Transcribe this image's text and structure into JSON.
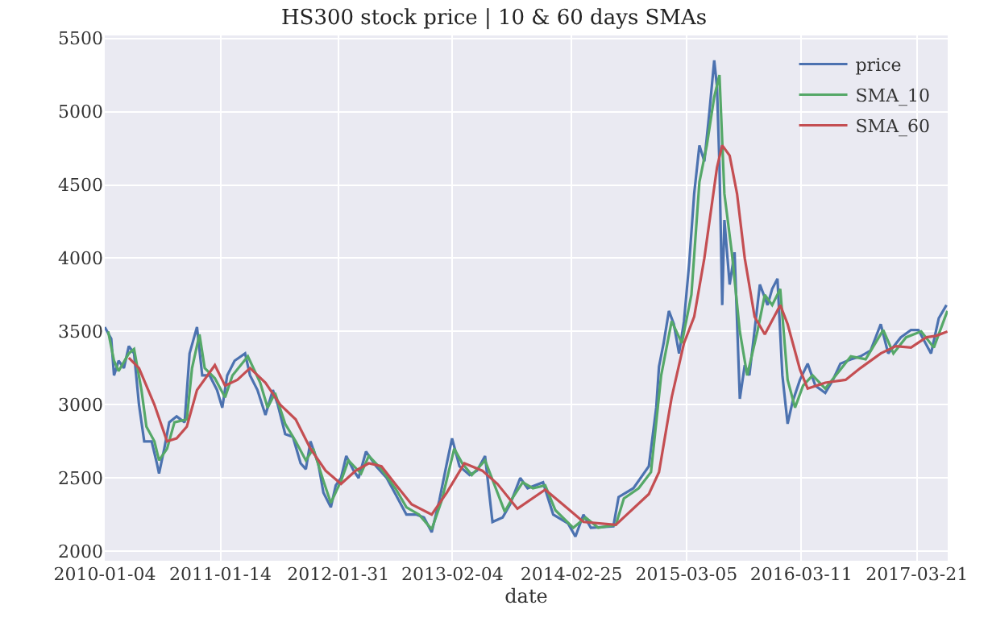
{
  "chart_data": {
    "type": "line",
    "title": "HS300 stock price | 10 & 60 days SMAs",
    "xlabel": "date",
    "xlim": [
      "2010-01-04",
      "2017-06-29"
    ],
    "xticks": [
      "2010-01-04",
      "2011-01-14",
      "2012-01-31",
      "2013-02-04",
      "2014-02-25",
      "2015-03-05",
      "2016-03-11",
      "2017-03-21"
    ],
    "ylim": [
      1935,
      5520
    ],
    "yticks": [
      2000,
      2500,
      3000,
      3500,
      4000,
      4500,
      5000,
      5500
    ],
    "grid": true,
    "legend": "top right",
    "line_style": "solid",
    "series": [
      {
        "name": "price",
        "color": "#4c72b0",
        "x": [
          "2010-01-04",
          "2010-01-25",
          "2010-02-03",
          "2010-02-18",
          "2010-03-07",
          "2010-03-23",
          "2010-04-09",
          "2010-04-25",
          "2010-05-12",
          "2010-06-05",
          "2010-06-22",
          "2010-06-29",
          "2010-07-16",
          "2010-08-01",
          "2010-08-25",
          "2010-09-20",
          "2010-10-06",
          "2010-10-30",
          "2010-11-16",
          "2010-12-10",
          "2011-01-03",
          "2011-01-20",
          "2011-02-05",
          "2011-03-01",
          "2011-04-04",
          "2011-04-20",
          "2011-05-14",
          "2011-06-09",
          "2011-07-03",
          "2011-07-19",
          "2011-08-12",
          "2011-09-06",
          "2011-10-01",
          "2011-10-18",
          "2011-11-02",
          "2011-11-27",
          "2011-12-14",
          "2012-01-07",
          "2012-01-23",
          "2012-02-09",
          "2012-02-26",
          "2012-03-21",
          "2012-04-06",
          "2012-04-30",
          "2012-06-02",
          "2012-07-06",
          "2012-08-06",
          "2012-09-08",
          "2012-10-11",
          "2012-11-04",
          "2012-11-29",
          "2012-12-24",
          "2013-01-17",
          "2013-02-03",
          "2013-02-27",
          "2013-04-01",
          "2013-04-25",
          "2013-05-21",
          "2013-06-14",
          "2013-07-17",
          "2013-08-10",
          "2013-09-12",
          "2013-10-06",
          "2013-11-25",
          "2013-12-28",
          "2014-02-14",
          "2014-03-10",
          "2014-04-05",
          "2014-04-29",
          "2014-07-11",
          "2014-07-28",
          "2014-09-14",
          "2014-11-03",
          "2014-11-27",
          "2014-12-06",
          "2014-12-21",
          "2015-01-07",
          "2015-01-23",
          "2015-02-09",
          "2015-02-25",
          "2015-03-14",
          "2015-03-30",
          "2015-04-16",
          "2015-05-02",
          "2015-05-18",
          "2015-06-03",
          "2015-06-12",
          "2015-06-20",
          "2015-06-29",
          "2015-07-06",
          "2015-07-23",
          "2015-08-08",
          "2015-08-25",
          "2015-09-10",
          "2015-09-25",
          "2015-10-29",
          "2015-11-23",
          "2015-12-08",
          "2015-12-25",
          "2016-01-10",
          "2016-01-27",
          "2016-02-12",
          "2016-03-07",
          "2016-04-01",
          "2016-04-26",
          "2016-05-28",
          "2016-06-22",
          "2016-07-16",
          "2016-08-19",
          "2016-09-19",
          "2016-10-22",
          "2016-11-24",
          "2016-12-18",
          "2017-01-28",
          "2017-03-02",
          "2017-03-26",
          "2017-05-06",
          "2017-05-31",
          "2017-06-25"
        ],
        "values": [
          3530,
          3450,
          3200,
          3300,
          3250,
          3400,
          3350,
          3000,
          2750,
          2750,
          2600,
          2530,
          2700,
          2880,
          2920,
          2880,
          3350,
          3530,
          3200,
          3200,
          3100,
          2980,
          3200,
          3300,
          3350,
          3200,
          3100,
          2930,
          3100,
          3000,
          2800,
          2780,
          2600,
          2560,
          2750,
          2600,
          2400,
          2300,
          2450,
          2500,
          2650,
          2550,
          2500,
          2680,
          2580,
          2500,
          2380,
          2250,
          2250,
          2230,
          2130,
          2350,
          2600,
          2770,
          2580,
          2520,
          2550,
          2650,
          2200,
          2230,
          2320,
          2500,
          2430,
          2470,
          2250,
          2190,
          2100,
          2250,
          2160,
          2170,
          2370,
          2430,
          2580,
          2980,
          3260,
          3420,
          3640,
          3550,
          3350,
          3570,
          3970,
          4440,
          4770,
          4660,
          4990,
          5350,
          5170,
          4630,
          3680,
          4260,
          3820,
          4040,
          3040,
          3270,
          3200,
          3820,
          3680,
          3790,
          3860,
          3200,
          2870,
          3020,
          3170,
          3280,
          3130,
          3080,
          3170,
          3280,
          3310,
          3330,
          3370,
          3550,
          3350,
          3460,
          3510,
          3510,
          3350,
          3590,
          3680
        ]
      },
      {
        "name": "SMA_10",
        "color": "#55a868",
        "x": [
          "2010-01-15",
          "2010-02-03",
          "2010-02-18",
          "2010-03-23",
          "2010-04-09",
          "2010-05-03",
          "2010-05-19",
          "2010-06-14",
          "2010-06-29",
          "2010-07-25",
          "2010-08-18",
          "2010-09-27",
          "2010-10-14",
          "2010-11-07",
          "2010-11-24",
          "2010-12-27",
          "2011-01-29",
          "2011-02-22",
          "2011-04-13",
          "2011-05-23",
          "2011-06-16",
          "2011-07-10",
          "2011-08-12",
          "2011-09-15",
          "2011-10-18",
          "2011-11-11",
          "2011-12-14",
          "2012-01-07",
          "2012-02-09",
          "2012-03-04",
          "2012-04-14",
          "2012-05-09",
          "2012-06-19",
          "2012-08-06",
          "2012-09-08",
          "2012-10-19",
          "2012-11-29",
          "2013-01-01",
          "2013-02-10",
          "2013-03-08",
          "2013-04-08",
          "2013-05-21",
          "2013-07-24",
          "2013-08-17",
          "2013-09-20",
          "2013-10-23",
          "2013-12-02",
          "2014-01-04",
          "2014-03-03",
          "2014-04-12",
          "2014-05-23",
          "2014-07-19",
          "2014-08-14",
          "2014-10-01",
          "2014-11-10",
          "2014-12-13",
          "2015-01-16",
          "2015-02-18",
          "2015-03-21",
          "2015-04-16",
          "2015-05-10",
          "2015-06-03",
          "2015-06-20",
          "2015-07-06",
          "2015-07-30",
          "2015-08-25",
          "2015-09-18",
          "2015-10-21",
          "2015-11-14",
          "2015-12-08",
          "2016-01-03",
          "2016-01-27",
          "2016-02-20",
          "2016-03-17",
          "2016-04-17",
          "2016-05-28",
          "2016-07-16",
          "2016-08-19",
          "2016-10-06",
          "2016-12-02",
          "2017-01-04",
          "2017-02-14",
          "2017-04-04",
          "2017-05-15",
          "2017-06-28"
        ],
        "values": [
          3500,
          3300,
          3230,
          3350,
          3380,
          3100,
          2850,
          2750,
          2620,
          2700,
          2880,
          2900,
          3250,
          3480,
          3250,
          3180,
          3050,
          3200,
          3330,
          3150,
          2980,
          3080,
          2870,
          2750,
          2620,
          2700,
          2480,
          2330,
          2480,
          2620,
          2530,
          2650,
          2560,
          2420,
          2300,
          2250,
          2150,
          2350,
          2700,
          2600,
          2520,
          2620,
          2270,
          2360,
          2470,
          2430,
          2450,
          2280,
          2160,
          2230,
          2160,
          2180,
          2360,
          2430,
          2540,
          3200,
          3570,
          3420,
          3750,
          4520,
          4770,
          5100,
          5250,
          4440,
          4040,
          3500,
          3200,
          3500,
          3750,
          3680,
          3790,
          3170,
          2980,
          3130,
          3200,
          3110,
          3240,
          3330,
          3310,
          3510,
          3350,
          3460,
          3500,
          3390,
          3640
        ]
      },
      {
        "name": "SMA_60",
        "color": "#c44e52",
        "x": [
          "2010-03-23",
          "2010-04-25",
          "2010-06-14",
          "2010-07-25",
          "2010-08-25",
          "2010-09-27",
          "2010-10-30",
          "2010-12-27",
          "2011-01-29",
          "2011-03-10",
          "2011-04-20",
          "2011-06-09",
          "2011-07-27",
          "2011-09-15",
          "2011-11-02",
          "2011-12-21",
          "2012-02-09",
          "2012-03-28",
          "2012-05-09",
          "2012-06-19",
          "2012-08-06",
          "2012-09-25",
          "2012-11-29",
          "2013-01-17",
          "2013-03-15",
          "2013-05-12",
          "2013-06-30",
          "2013-09-03",
          "2013-12-02",
          "2014-01-28",
          "2014-04-05",
          "2014-07-19",
          "2014-11-03",
          "2014-12-06",
          "2015-01-16",
          "2015-02-25",
          "2015-03-30",
          "2015-05-02",
          "2015-06-12",
          "2015-06-29",
          "2015-07-23",
          "2015-08-16",
          "2015-09-10",
          "2015-10-12",
          "2015-11-14",
          "2016-01-03",
          "2016-01-27",
          "2016-03-07",
          "2016-04-01",
          "2016-05-28",
          "2016-08-02",
          "2016-09-19",
          "2016-11-24",
          "2017-01-12",
          "2017-03-02",
          "2017-04-21",
          "2017-05-22",
          "2017-06-28"
        ],
        "values": [
          3320,
          3250,
          3000,
          2750,
          2770,
          2850,
          3100,
          3270,
          3130,
          3170,
          3250,
          3150,
          3000,
          2900,
          2700,
          2550,
          2460,
          2550,
          2600,
          2580,
          2450,
          2320,
          2250,
          2400,
          2600,
          2550,
          2460,
          2290,
          2420,
          2320,
          2200,
          2180,
          2390,
          2540,
          3050,
          3420,
          3600,
          4000,
          4620,
          4770,
          4700,
          4440,
          4000,
          3600,
          3480,
          3680,
          3550,
          3240,
          3110,
          3150,
          3170,
          3250,
          3350,
          3400,
          3390,
          3460,
          3470,
          3500
        ]
      }
    ]
  }
}
